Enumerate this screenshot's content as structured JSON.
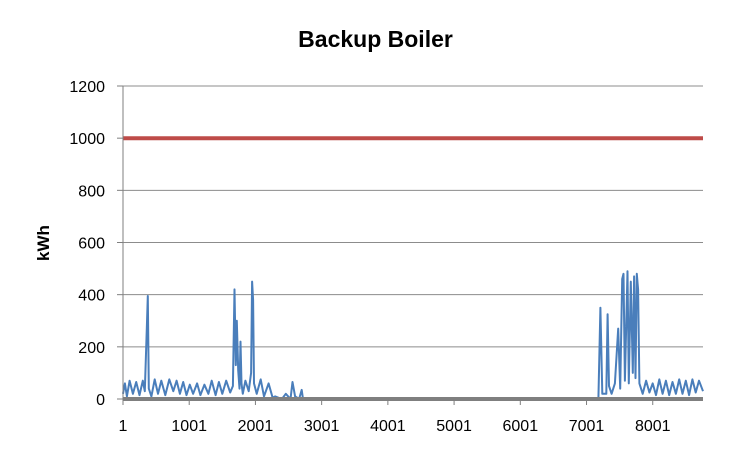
{
  "chart_data": {
    "type": "line",
    "title": "Backup Boiler",
    "ylabel": "kWh",
    "xlabel": "",
    "ylim": [
      0,
      1200
    ],
    "xlim": [
      1,
      8760
    ],
    "yticks": [
      0,
      200,
      400,
      600,
      800,
      1000,
      1200
    ],
    "xticks": [
      1,
      1001,
      2001,
      3001,
      4001,
      5001,
      6001,
      7001,
      8001
    ],
    "grid": "horizontal",
    "colors": {
      "demand": "#4a7ebb",
      "capacity": "#be4b48",
      "grid": "#8c8c8c",
      "axis": "#7f7f7f"
    },
    "series": [
      {
        "key": "demand",
        "baseline_points": [
          [
            1,
            20
          ],
          [
            30,
            60
          ],
          [
            60,
            10
          ],
          [
            100,
            70
          ],
          [
            150,
            20
          ],
          [
            200,
            65
          ],
          [
            250,
            15
          ],
          [
            300,
            70
          ],
          [
            330,
            30
          ],
          [
            360,
            270
          ],
          [
            375,
            395
          ],
          [
            390,
            40
          ],
          [
            430,
            10
          ],
          [
            480,
            75
          ],
          [
            530,
            20
          ],
          [
            580,
            70
          ],
          [
            640,
            15
          ],
          [
            700,
            75
          ],
          [
            760,
            30
          ],
          [
            810,
            70
          ],
          [
            860,
            20
          ],
          [
            910,
            65
          ],
          [
            960,
            15
          ],
          [
            1010,
            55
          ],
          [
            1060,
            20
          ],
          [
            1120,
            60
          ],
          [
            1170,
            15
          ],
          [
            1230,
            55
          ],
          [
            1290,
            20
          ],
          [
            1340,
            70
          ],
          [
            1400,
            15
          ],
          [
            1450,
            65
          ],
          [
            1500,
            20
          ],
          [
            1560,
            70
          ],
          [
            1620,
            25
          ],
          [
            1660,
            50
          ],
          [
            1685,
            420
          ],
          [
            1705,
            130
          ],
          [
            1720,
            300
          ],
          [
            1740,
            110
          ],
          [
            1760,
            40
          ],
          [
            1775,
            220
          ],
          [
            1790,
            60
          ],
          [
            1810,
            20
          ],
          [
            1850,
            70
          ],
          [
            1900,
            30
          ],
          [
            1935,
            100
          ],
          [
            1950,
            450
          ],
          [
            1965,
            380
          ],
          [
            1980,
            60
          ],
          [
            2020,
            20
          ],
          [
            2080,
            75
          ],
          [
            2130,
            10
          ],
          [
            2200,
            60
          ],
          [
            2260,
            5
          ],
          [
            2300,
            10
          ],
          [
            2400,
            0
          ],
          [
            2460,
            20
          ],
          [
            2530,
            0
          ],
          [
            2560,
            65
          ],
          [
            2600,
            10
          ],
          [
            2660,
            0
          ],
          [
            2700,
            35
          ],
          [
            2720,
            0
          ],
          [
            3500,
            0
          ],
          [
            5000,
            0
          ],
          [
            6500,
            0
          ],
          [
            7100,
            0
          ],
          [
            7180,
            0
          ],
          [
            7210,
            350
          ],
          [
            7240,
            20
          ],
          [
            7300,
            20
          ],
          [
            7320,
            325
          ],
          [
            7340,
            50
          ],
          [
            7380,
            20
          ],
          [
            7430,
            60
          ],
          [
            7480,
            270
          ],
          [
            7510,
            40
          ],
          [
            7540,
            460
          ],
          [
            7560,
            480
          ],
          [
            7580,
            70
          ],
          [
            7620,
            490
          ],
          [
            7640,
            60
          ],
          [
            7670,
            450
          ],
          [
            7700,
            100
          ],
          [
            7720,
            470
          ],
          [
            7740,
            80
          ],
          [
            7760,
            480
          ],
          [
            7780,
            420
          ],
          [
            7800,
            60
          ],
          [
            7850,
            20
          ],
          [
            7900,
            70
          ],
          [
            7950,
            25
          ],
          [
            8000,
            60
          ],
          [
            8050,
            15
          ],
          [
            8100,
            75
          ],
          [
            8150,
            20
          ],
          [
            8200,
            70
          ],
          [
            8250,
            15
          ],
          [
            8300,
            65
          ],
          [
            8350,
            20
          ],
          [
            8400,
            75
          ],
          [
            8450,
            20
          ],
          [
            8500,
            70
          ],
          [
            8550,
            15
          ],
          [
            8600,
            75
          ],
          [
            8650,
            25
          ],
          [
            8700,
            70
          ],
          [
            8760,
            30
          ]
        ]
      },
      {
        "key": "capacity",
        "x": [
          1,
          8760
        ],
        "y": [
          1000,
          1000
        ]
      }
    ]
  }
}
